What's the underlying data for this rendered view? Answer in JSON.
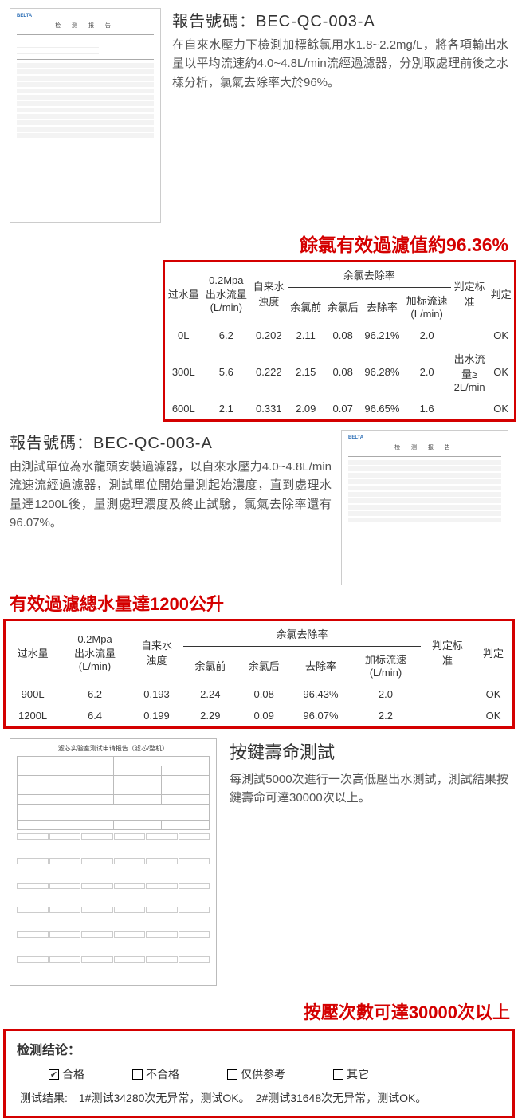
{
  "section1": {
    "code_label": "報告號碼：BEC-QC-003-A",
    "paragraph": "在自來水壓力下檢測加標餘氯用水1.8~2.2mg/L，將各項輸出水量以平均流速約4.0~4.8L/min流經過濾器，分別取處理前後之水樣分析，氯氣去除率大於96%。",
    "red_heading": "餘氯有效過濾值約96.36%",
    "table": {
      "headers": {
        "col1": "过水量",
        "col2": "0.2Mpa\n出水流量\n(L/min)",
        "col3": "自来水\n浊度",
        "group": "余氯去除率",
        "sub1": "余氯前",
        "sub2": "余氯后",
        "sub3": "去除率",
        "sub4": "加标流速\n(L/min)",
        "col8": "判定标\n准",
        "col9": "判定"
      },
      "rows": [
        {
          "c1": "0L",
          "c2": "6.2",
          "c3": "0.202",
          "c4": "2.11",
          "c5": "0.08",
          "c6": "96.21%",
          "c7": "2.0",
          "c8": "",
          "c9": "OK"
        },
        {
          "c1": "300L",
          "c2": "5.6",
          "c3": "0.222",
          "c4": "2.15",
          "c5": "0.08",
          "c6": "96.28%",
          "c7": "2.0",
          "c8": "出水流\n量≥\n2L/min",
          "c9": "OK"
        },
        {
          "c1": "600L",
          "c2": "2.1",
          "c3": "0.331",
          "c4": "2.09",
          "c5": "0.07",
          "c6": "96.65%",
          "c7": "1.6",
          "c8": "",
          "c9": "OK"
        }
      ]
    }
  },
  "section2": {
    "code_label": "報告號碼：BEC-QC-003-A",
    "paragraph": "由測試單位為水龍頭安裝過濾器，以自來水壓力4.0~4.8L/min流速流經過濾器，測試單位開始量測起始濃度，直到處理水量達1200L後，量測處理濃度及終止試驗，氯氣去除率還有96.07%。",
    "red_heading": "有效過濾總水量達1200公升",
    "table": {
      "rows": [
        {
          "c1": "900L",
          "c2": "6.2",
          "c3": "0.193",
          "c4": "2.24",
          "c5": "0.08",
          "c6": "96.43%",
          "c7": "2.0",
          "c8": "",
          "c9": "OK"
        },
        {
          "c1": "1200L",
          "c2": "6.4",
          "c3": "0.199",
          "c4": "2.29",
          "c5": "0.09",
          "c6": "96.07%",
          "c7": "2.2",
          "c8": "",
          "c9": "OK"
        }
      ]
    }
  },
  "section3": {
    "heading": "按鍵壽命測試",
    "paragraph": "每測試5000次進行一次高低壓出水測試，測試結果按鍵壽命可達30000次以上。",
    "red_heading": "按壓次數可達30000次以上",
    "result": {
      "label": "检测结论：",
      "opts": [
        "合格",
        "不合格",
        "仅供参考",
        "其它"
      ],
      "checked_index": 0,
      "line": "测试结果:　1#测试34280次无异常，测试OK。　2#测试31648次无异常，测试OK。"
    }
  },
  "thumb": {
    "brand": "BELTA",
    "title": "检 测 报 告"
  }
}
